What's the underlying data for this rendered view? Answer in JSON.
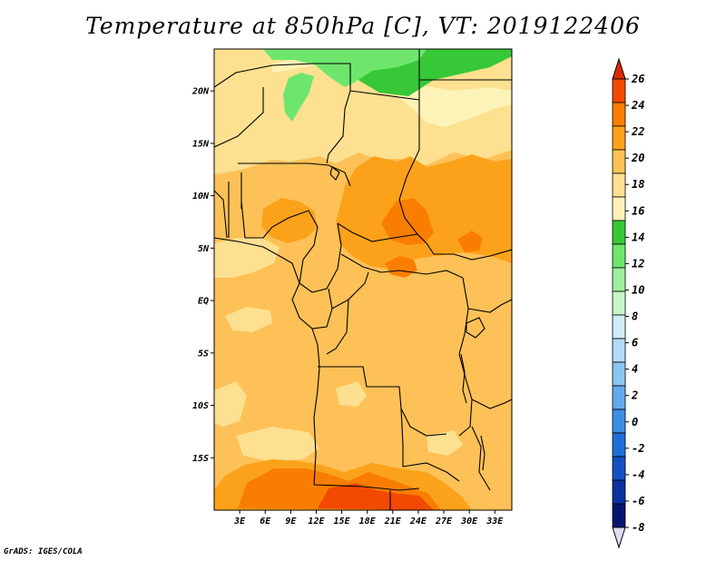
{
  "title": "Temperature at 850hPa [C], VT: 2019122406",
  "credit": "GrADS: IGES/COLA",
  "map": {
    "lat_range": [
      -20,
      24
    ],
    "lon_range": [
      0,
      35
    ],
    "lat_ticks": [
      "20N",
      "15N",
      "10N",
      "5N",
      "EQ",
      "5S",
      "10S",
      "15S"
    ],
    "lon_ticks": [
      "3E",
      "6E",
      "9E",
      "12E",
      "15E",
      "18E",
      "21E",
      "24E",
      "27E",
      "30E",
      "33E"
    ]
  },
  "colorbar": {
    "labels": [
      "26",
      "24",
      "22",
      "20",
      "18",
      "16",
      "14",
      "12",
      "10",
      "8",
      "6",
      "4",
      "2",
      "0",
      "-2",
      "-4",
      "-6",
      "-8"
    ],
    "colors": [
      "#dc2a00",
      "#f24a00",
      "#f97e00",
      "#fca21a",
      "#fdc157",
      "#fde090",
      "#fef3b6",
      "#37c837",
      "#6ee66e",
      "#9ef09e",
      "#c8f6c8",
      "#d2ecf7",
      "#b4daf5",
      "#8cc5f0",
      "#64aaeb",
      "#3c8ee3",
      "#1e6ed7",
      "#1450c3",
      "#0a32a0",
      "#05146e",
      "#dcdcf5"
    ]
  }
}
